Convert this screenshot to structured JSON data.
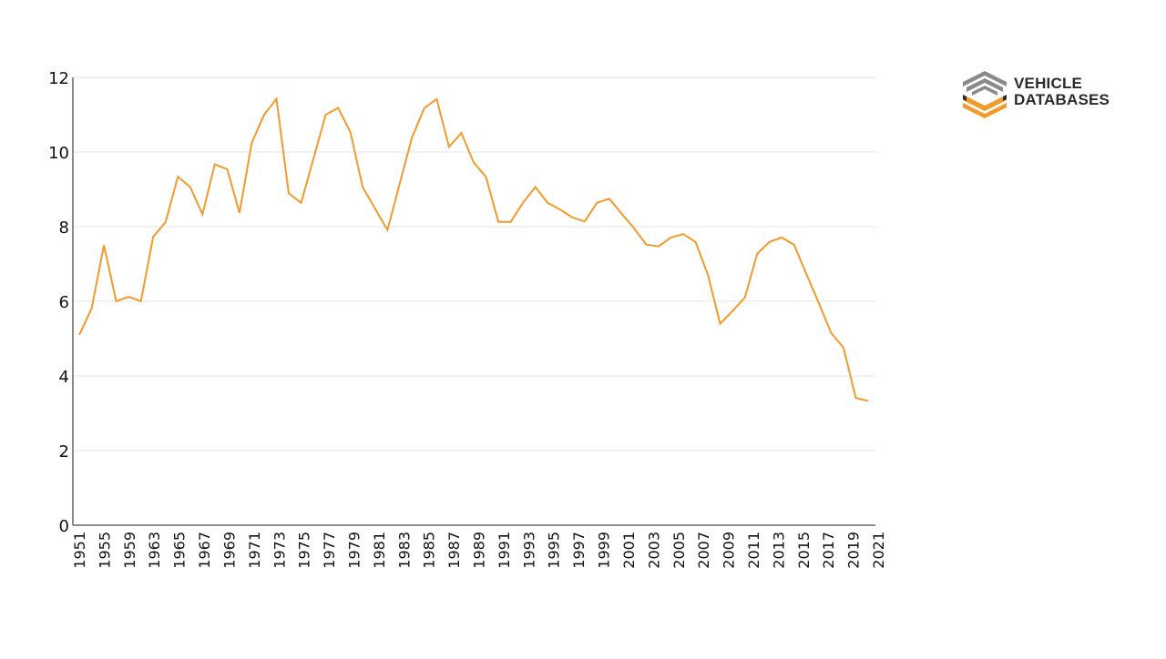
{
  "logo": {
    "line1": "VEHICLE",
    "line2": "DATABASES",
    "colors": {
      "grey": "#8a8a8a",
      "orange": "#f39a2b",
      "dark": "#2b2b2b"
    }
  },
  "chart_data": {
    "type": "line",
    "title": "",
    "xlabel": "",
    "ylabel": "",
    "ylim": [
      0,
      12
    ],
    "yticks": [
      0,
      2,
      4,
      6,
      8,
      10,
      12
    ],
    "grid": true,
    "legend": null,
    "series_color": "#f39a2b",
    "x": [
      1951,
      1953,
      1955,
      1957,
      1959,
      1961,
      1963,
      1964,
      1965,
      1966,
      1967,
      1968,
      1969,
      1970,
      1971,
      1972,
      1973,
      1974,
      1975,
      1976,
      1977,
      1978,
      1979,
      1980,
      1981,
      1982,
      1983,
      1984,
      1985,
      1986,
      1987,
      1988,
      1989,
      1990,
      1991,
      1992,
      1993,
      1994,
      1995,
      1996,
      1997,
      1998,
      1999,
      2000,
      2001,
      2002,
      2003,
      2004,
      2005,
      2006,
      2007,
      2008,
      2009,
      2010,
      2011,
      2012,
      2013,
      2014,
      2015,
      2016,
      2017,
      2018,
      2019,
      2020,
      2021
    ],
    "series": [
      {
        "name": "value",
        "values": [
          5.1,
          5.8,
          7.5,
          6.0,
          6.12,
          6.0,
          7.73,
          8.12,
          9.34,
          9.06,
          8.33,
          9.67,
          9.54,
          8.37,
          10.25,
          11.0,
          11.42,
          8.89,
          8.64,
          9.82,
          11.0,
          11.18,
          10.53,
          9.05,
          8.48,
          7.91,
          9.15,
          10.39,
          11.18,
          11.42,
          10.14,
          10.51,
          9.72,
          9.33,
          8.13,
          8.13,
          8.64,
          9.06,
          8.64,
          8.46,
          8.25,
          8.14,
          8.64,
          8.75,
          8.35,
          7.96,
          7.52,
          7.47,
          7.71,
          7.8,
          7.59,
          6.71,
          5.4,
          5.74,
          6.1,
          7.27,
          7.59,
          7.71,
          7.51,
          6.73,
          5.95,
          5.15,
          4.76,
          3.41,
          3.33
        ]
      }
    ],
    "xtick_labels": [
      "1951",
      "1955",
      "1959",
      "1963",
      "1965",
      "1967",
      "1969",
      "1971",
      "1973",
      "1975",
      "1977",
      "1979",
      "1981",
      "1983",
      "1985",
      "1987",
      "1989",
      "1991",
      "1993",
      "1995",
      "1997",
      "1999",
      "2001",
      "2003",
      "2005",
      "2007",
      "2009",
      "2011",
      "2013",
      "2015",
      "2017",
      "2019",
      "2021"
    ],
    "ytick_labels": [
      "0",
      "2",
      "4",
      "6",
      "8",
      "10",
      "12"
    ]
  }
}
